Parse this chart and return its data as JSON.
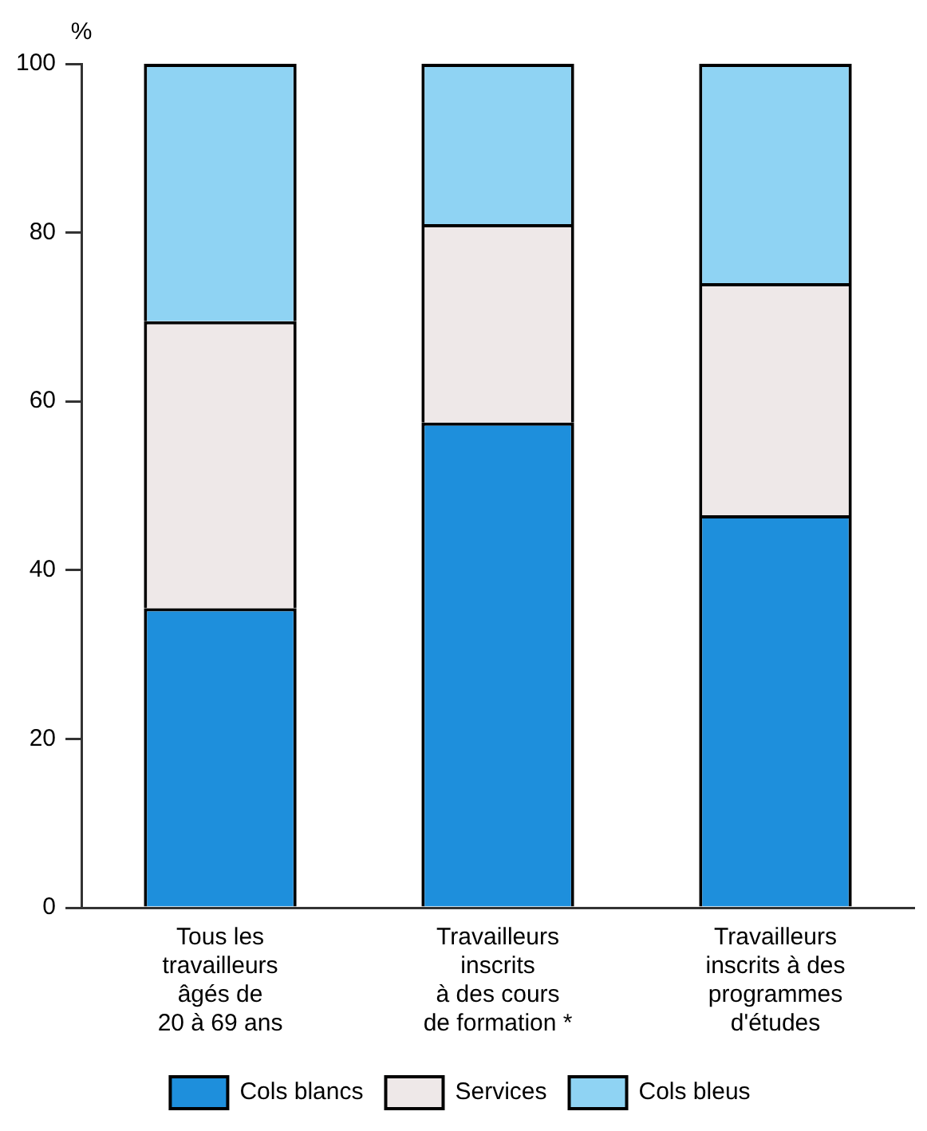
{
  "chart_data": {
    "type": "bar",
    "stacked": true,
    "ylabel": "%",
    "categories": [
      "Tous les\ntravailleurs\nâgés de\n20 à 69 ans",
      "Travailleurs\ninscrits\nà des cours\nde formation *",
      "Travailleurs\ninscrits à des\nprogrammes\nd'études"
    ],
    "series": [
      {
        "name": "Cols blancs",
        "color": "#1e8fdc",
        "values": [
          35.5,
          57.5,
          46.5
        ]
      },
      {
        "name": "Services",
        "color": "#eee8e8",
        "values": [
          34,
          23.5,
          27.5
        ]
      },
      {
        "name": "Cols bleus",
        "color": "#8fd3f3",
        "values": [
          30.5,
          19,
          26
        ]
      }
    ],
    "ylim": [
      0,
      100
    ],
    "yticks": [
      0,
      20,
      40,
      60,
      80,
      100
    ],
    "grid": false,
    "legend": "bottom"
  }
}
